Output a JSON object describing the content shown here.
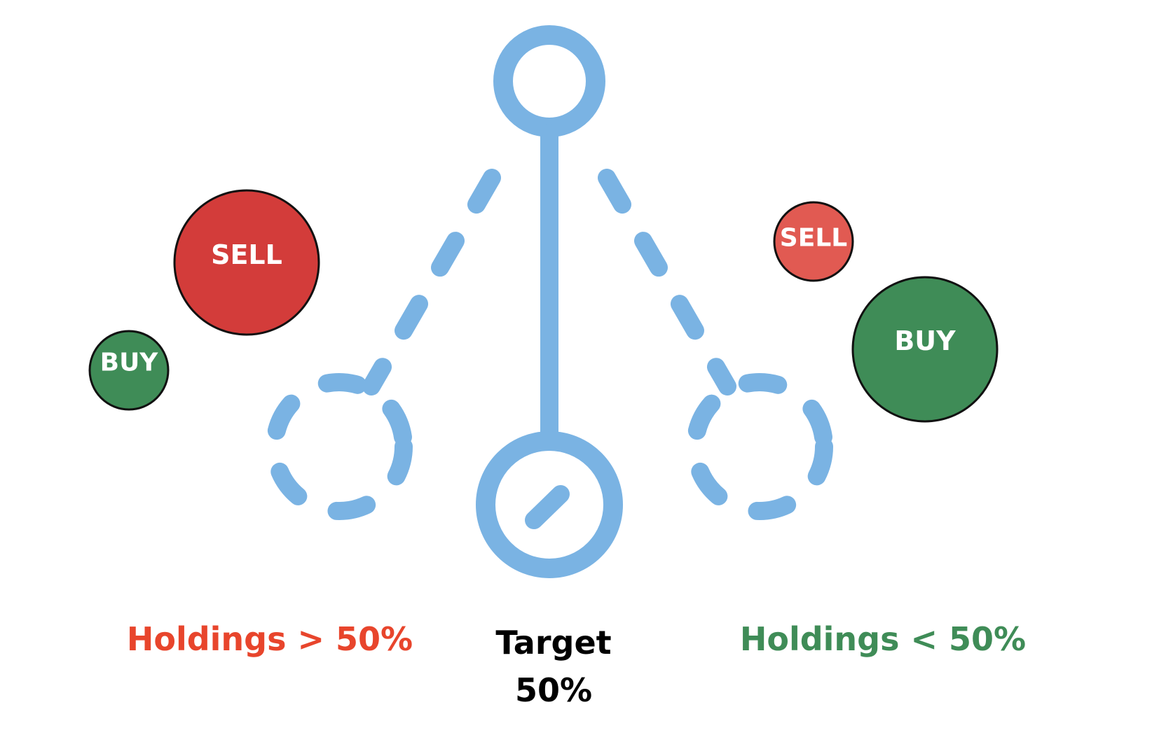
{
  "colors": {
    "pendulum": "#7ab3e3",
    "sell_dark": "#d33c3a",
    "sell_light": "#e15a52",
    "buy": "#3f8c57",
    "label_red": "#e8452c",
    "label_green": "#3f8c57",
    "label_black": "#000000"
  },
  "left": {
    "label": "Holdings > 50%",
    "sell_bubble": "SELL",
    "buy_bubble": "BUY"
  },
  "center": {
    "label_line1": "Target",
    "label_line2": "50%"
  },
  "right": {
    "label": "Holdings < 50%",
    "sell_bubble": "SELL",
    "buy_bubble": "BUY"
  }
}
